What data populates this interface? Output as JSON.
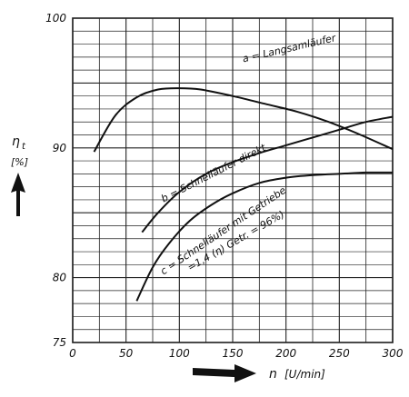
{
  "chart_data": {
    "type": "line",
    "xlabel_symbol": "n",
    "xlabel_unit": "[U/min]",
    "ylabel_symbol": "η",
    "ylabel_subscript": "t",
    "ylabel_unit": "[%]",
    "xlim": [
      0,
      300
    ],
    "ylim": [
      75,
      100
    ],
    "xticks": [
      "0",
      "50",
      "100",
      "150",
      "200",
      "250",
      "300"
    ],
    "yticks": [
      "75",
      "80",
      "90",
      "100"
    ],
    "grid": true,
    "series": [
      {
        "name": "a = Langsamläufer",
        "x": [
          20,
          40,
          60,
          80,
          100,
          120,
          150,
          180,
          210,
          240,
          270,
          300
        ],
        "y": [
          89.7,
          92.5,
          93.9,
          94.5,
          94.6,
          94.5,
          94.0,
          93.4,
          92.8,
          92.0,
          91.0,
          89.9
        ]
      },
      {
        "name": "b = Schnelläufer direkt",
        "x": [
          65,
          80,
          100,
          125,
          150,
          175,
          200,
          225,
          250,
          275,
          300
        ],
        "y": [
          83.5,
          85.0,
          86.6,
          88.0,
          88.9,
          89.6,
          90.2,
          90.8,
          91.4,
          92.0,
          92.4
        ]
      },
      {
        "name": "c = Schnelläufer mit Getriebe (=1,4 (η) Getr. = 96%)",
        "x": [
          60,
          75,
          90,
          110,
          130,
          150,
          175,
          200,
          225,
          250,
          275,
          300
        ],
        "y": [
          78.2,
          80.8,
          82.6,
          84.4,
          85.6,
          86.5,
          87.3,
          87.7,
          87.9,
          88.0,
          88.1,
          88.1
        ]
      }
    ],
    "labels": [
      {
        "text": "a = Langsamläufer",
        "x": 160,
        "y": 96.6,
        "angle": -13
      },
      {
        "text": "b = Schnelläufer direkt",
        "x": 85,
        "y": 85.8,
        "angle": -27
      },
      {
        "text": "c = Schnelläufer mit Getriebe",
        "x": 85,
        "y": 80.2,
        "angle": -34
      },
      {
        "text": "=1,4 (η) Getr. = 96%)",
        "x": 110,
        "y": 80.5,
        "angle": -30
      }
    ]
  }
}
